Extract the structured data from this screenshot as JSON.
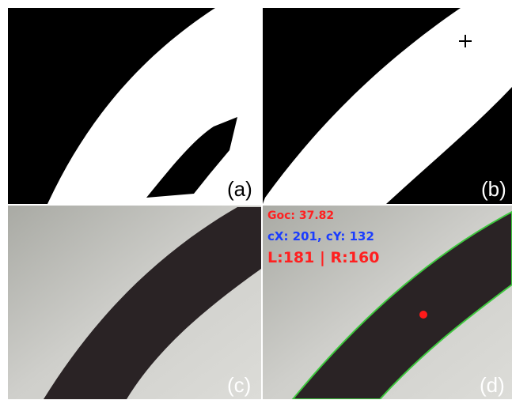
{
  "panels": [
    {
      "label": "(a)"
    },
    {
      "label": "(b)"
    },
    {
      "label": "(c)"
    },
    {
      "label": "(d)",
      "overlay": [
        "Goc: 37.82",
        "cX: 201, cY: 132",
        "L:181 | R:160"
      ]
    }
  ]
}
